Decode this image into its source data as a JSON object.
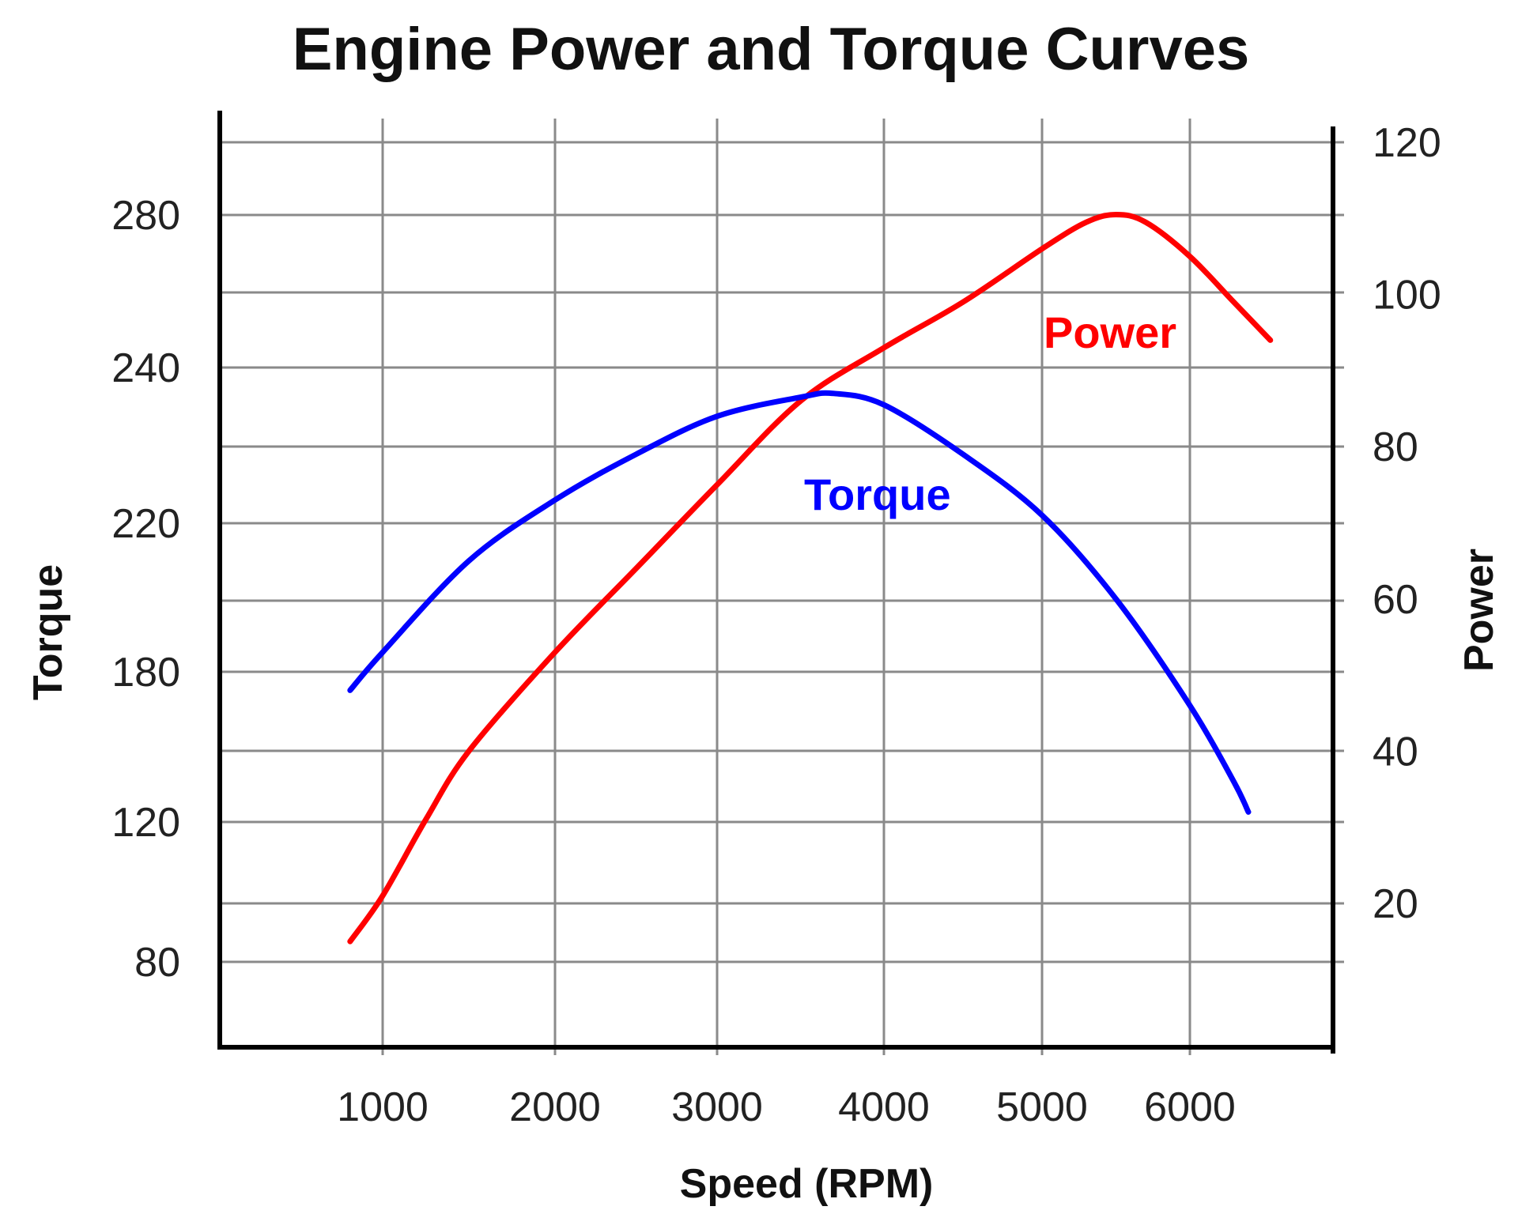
{
  "chart_data": {
    "type": "line",
    "title": "Engine Power and Torque Curves",
    "xlabel": "Speed (RPM)",
    "ylabel_left": "Torque",
    "ylabel_right": "Power",
    "x_ticks": [
      1000,
      2000,
      3000,
      4000,
      5000,
      6000
    ],
    "y_left_ticks": [
      80,
      120,
      180,
      220,
      240,
      280
    ],
    "y_right_ticks": [
      20,
      40,
      60,
      80,
      100,
      120
    ],
    "xlim": [
      0,
      7000
    ],
    "ylim_right": [
      0,
      120
    ],
    "grid": true,
    "series": [
      {
        "name": "Power",
        "axis": "right",
        "color": "#ff0000",
        "x": [
          800,
          1000,
          1250,
          1500,
          2000,
          2500,
          3000,
          3500,
          4000,
          4500,
          5000,
          5300,
          5500,
          5700,
          6000,
          6300,
          6550
        ],
        "values": [
          15,
          21,
          31,
          40,
          53,
          64,
          75,
          86,
          93,
          99,
          106,
          109.5,
          110.5,
          109.5,
          105,
          99,
          94
        ]
      },
      {
        "name": "Torque",
        "axis": "left",
        "color": "#0000ff",
        "x": [
          800,
          1000,
          1500,
          2000,
          2500,
          3000,
          3500,
          3700,
          4000,
          4500,
          5000,
          5500,
          6000,
          6300,
          6400
        ],
        "values": [
          48,
          53,
          65,
          73,
          79,
          84,
          86.5,
          87,
          85.5,
          79,
          71,
          60,
          46,
          36,
          32
        ]
      }
    ]
  }
}
